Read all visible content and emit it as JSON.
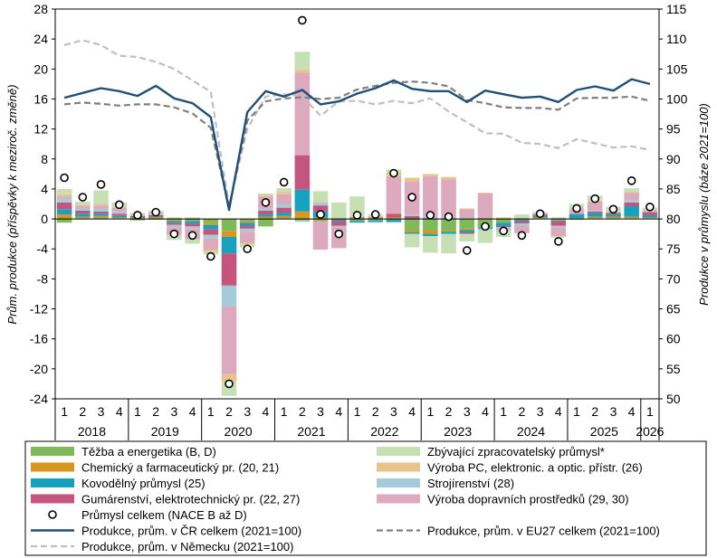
{
  "chart_data": {
    "type": "bar",
    "ylabel_left": "Prům. produkce (příspěvky  k meziroč. změně)",
    "ylabel_right": "Produkce v průmyslu (báze 2021=100)",
    "y_left": {
      "min": -24,
      "max": 28,
      "step": 4
    },
    "y_right": {
      "min": 50,
      "max": 115,
      "step": 5
    },
    "quarters": [
      "1",
      "2",
      "3",
      "4",
      "1",
      "2",
      "3",
      "4",
      "1",
      "2",
      "3",
      "4",
      "1",
      "2",
      "3",
      "4",
      "1",
      "2",
      "3",
      "4",
      "1",
      "2",
      "3",
      "4",
      "1",
      "2",
      "3",
      "4",
      "1",
      "2",
      "3",
      "4",
      "1"
    ],
    "years": [
      {
        "label": "2018",
        "start": 0,
        "count": 4
      },
      {
        "label": "2019",
        "start": 4,
        "count": 4
      },
      {
        "label": "2020",
        "start": 8,
        "count": 4
      },
      {
        "label": "2021",
        "start": 12,
        "count": 4
      },
      {
        "label": "2022",
        "start": 16,
        "count": 4
      },
      {
        "label": "2023",
        "start": 20,
        "count": 4
      },
      {
        "label": "2024",
        "start": 24,
        "count": 4
      },
      {
        "label": "2025",
        "start": 28,
        "count": 4
      },
      {
        "label": "2026",
        "start": 32,
        "count": 1
      }
    ],
    "stack_series": [
      {
        "name": "Těžba a energetika (B, D)",
        "color": "#7fba5a",
        "values": [
          -0.5,
          0.1,
          0.2,
          0.1,
          -0.2,
          -0.1,
          -0.3,
          -0.3,
          -0.5,
          -1.6,
          -0.3,
          -1.0,
          0.1,
          -0.2,
          -0.3,
          0.1,
          -0.3,
          -0.2,
          -0.1,
          -1.5,
          -1.5,
          -1.5,
          -1.3,
          -1.0,
          -0.5,
          -0.1,
          0.1,
          -0.2,
          0.1,
          0.1,
          0.1,
          0.1,
          0.1
        ]
      },
      {
        "name": "Chemický a farmaceutický pr. (20, 21)",
        "color": "#d7961e",
        "values": [
          0.6,
          0.2,
          0.2,
          0.1,
          0.1,
          0.2,
          0.1,
          0.1,
          -0.3,
          -0.8,
          -0.2,
          0.3,
          0.3,
          1.0,
          0.2,
          -0.1,
          0.1,
          0.1,
          0.2,
          -0.3,
          -0.5,
          -0.2,
          -0.2,
          -0.1,
          0.1,
          0.1,
          0.1,
          0.1,
          -0.1,
          0.2,
          0.2,
          0.2,
          0.1
        ]
      },
      {
        "name": "Kovodělný průmysl (25)",
        "color": "#16a2bf",
        "values": [
          0.7,
          0.4,
          0.3,
          0.2,
          0.1,
          0.1,
          -0.2,
          -0.3,
          -0.6,
          -2.2,
          -0.4,
          0.3,
          0.4,
          2.9,
          0.8,
          -0.2,
          -0.2,
          -0.2,
          -0.3,
          -0.2,
          -0.3,
          -0.3,
          -0.3,
          -0.2,
          -0.4,
          -0.2,
          0.2,
          -0.1,
          0.5,
          0.5,
          0.3,
          1.4,
          0.3
        ]
      },
      {
        "name": "Gumárenství, elektrotechnický pr. (22, 27)",
        "color": "#c4557c",
        "values": [
          0.9,
          0.4,
          0.3,
          0.3,
          0.2,
          0.2,
          -0.3,
          -0.4,
          -0.7,
          -4.3,
          -0.4,
          0.5,
          0.7,
          4.6,
          0.8,
          -0.6,
          0.1,
          0.1,
          0.5,
          0.4,
          0.1,
          0.1,
          -0.2,
          0.1,
          -0.2,
          -0.3,
          0.2,
          -0.6,
          0.1,
          0.2,
          0.2,
          0.5,
          0.4
        ]
      },
      {
        "name": "Strojírenství (28)",
        "color": "#a3ccd8",
        "values": [
          0.5,
          0.3,
          0.4,
          0.3,
          0.1,
          0.2,
          -0.3,
          -0.3,
          -0.5,
          -2.8,
          -0.4,
          0.3,
          0.5,
          -0.2,
          0.4,
          -0.2,
          0.1,
          -0.1,
          -0.1,
          0.2,
          0.2,
          0.2,
          0.1,
          -0.2,
          -0.5,
          -0.3,
          0.1,
          -0.2,
          0.1,
          0.1,
          0.1,
          0.3,
          0.1
        ]
      },
      {
        "name": "Výroba dopravních prostředků (29, 30)",
        "color": "#dca9bd",
        "values": [
          0.3,
          0.4,
          0.4,
          0.5,
          0.1,
          0.2,
          -1.0,
          -1.4,
          -1.5,
          -9.0,
          -1.5,
          1.6,
          1.3,
          11.0,
          -3.8,
          -2.8,
          0.0,
          0.0,
          5.0,
          4.4,
          5.4,
          5.0,
          1.2,
          3.3,
          0.0,
          -1.0,
          0.0,
          -1.2,
          0.5,
          1.2,
          0.0,
          1.0,
          0.2
        ]
      },
      {
        "name": "Výroba PC, elektronic. a optic. přístr. (26)",
        "color": "#e8c38a",
        "values": [
          0.3,
          0.1,
          0.2,
          0.1,
          0.1,
          0.1,
          0.1,
          0.1,
          -0.3,
          -1.0,
          -0.2,
          0.2,
          0.3,
          0.4,
          0.1,
          0.1,
          0.1,
          0.1,
          0.4,
          0.5,
          0.3,
          0.3,
          0.1,
          0.1,
          0.1,
          0.1,
          0.1,
          0.1,
          0.1,
          0.1,
          0.1,
          0.1,
          0.1
        ]
      },
      {
        "name": "Zbývající zpracovatelský průmysl*",
        "color": "#c6e0b4",
        "values": [
          0.7,
          0.4,
          1.8,
          0.6,
          0.1,
          0.1,
          -0.7,
          -0.6,
          -0.3,
          -1.9,
          -0.4,
          0.2,
          0.5,
          2.4,
          1.4,
          2.0,
          2.6,
          0.3,
          0.5,
          -1.8,
          -2.2,
          -2.6,
          -1.0,
          -1.7,
          -0.8,
          0.4,
          0.1,
          -0.2,
          0.6,
          0.7,
          0.6,
          0.5,
          0.2
        ]
      }
    ],
    "total_marker": {
      "name": "Průmysl celkem (NACE B až D)",
      "values": [
        5.5,
        2.9,
        4.6,
        1.9,
        0.5,
        0.9,
        -2.0,
        -2.2,
        -5.0,
        -22.0,
        -4.0,
        2.2,
        4.9,
        26.5,
        0.6,
        -2.0,
        0.5,
        0.6,
        6.1,
        2.9,
        0.5,
        0.3,
        -4.2,
        -1.0,
        -1.6,
        -2.2,
        0.7,
        -3.0,
        1.4,
        2.7,
        1.3,
        5.1,
        1.6
      ]
    },
    "lines": [
      {
        "name": "Produkce, prům. v ČR celkem (2021=100)",
        "color": "#1f4e79",
        "style": "solid",
        "values": [
          100.2,
          101.0,
          101.8,
          101.3,
          100.5,
          102.2,
          100.1,
          99.3,
          97.0,
          81.5,
          97.8,
          101.3,
          100.4,
          101.5,
          99.1,
          99.6,
          100.9,
          101.8,
          103.1,
          101.7,
          101.3,
          101.3,
          99.5,
          101.4,
          100.8,
          100.2,
          100.4,
          99.5,
          101.5,
          102.1,
          101.4,
          103.3,
          102.5
        ]
      },
      {
        "name": "Produkce, prům. v EU27 celkem (2021=100)",
        "color": "#7f7f7f",
        "style": "dashed",
        "values": [
          99.1,
          99.4,
          99.2,
          98.9,
          99.1,
          99.1,
          98.6,
          97.6,
          95.2,
          82.0,
          96.4,
          99.6,
          100.1,
          100.3,
          100.0,
          100.2,
          101.6,
          102.2,
          102.7,
          102.9,
          102.7,
          102.1,
          99.8,
          99.3,
          98.6,
          98.5,
          98.5,
          98.2,
          100.1,
          100.2,
          100.2,
          100.4,
          99.7
        ]
      },
      {
        "name": "Produkce, prům. v Německu (2021=100)",
        "color": "#bfbfbf",
        "style": "dashed",
        "values": [
          109.0,
          109.8,
          109.0,
          107.2,
          107.0,
          106.2,
          105.0,
          103.1,
          101.2,
          82.2,
          95.0,
          100.4,
          100.8,
          100.5,
          97.2,
          99.6,
          99.7,
          99.1,
          99.7,
          99.3,
          100.1,
          97.9,
          96.1,
          94.3,
          94.2,
          92.7,
          92.5,
          91.8,
          93.3,
          92.6,
          91.9,
          92.1,
          91.5
        ]
      }
    ]
  },
  "legend": [
    {
      "label": "Těžba a energetika (B, D)",
      "kind": "rect",
      "color": "#7fba5a"
    },
    {
      "label": "Zbývající zpracovatelský průmysl*",
      "kind": "rect",
      "color": "#c6e0b4"
    },
    {
      "label": "Chemický a farmaceutický pr. (20, 21)",
      "kind": "rect",
      "color": "#d7961e"
    },
    {
      "label": "Výroba PC, elektronic. a optic. přístr. (26)",
      "kind": "rect",
      "color": "#e8c38a"
    },
    {
      "label": "Kovodělný průmysl (25)",
      "kind": "rect",
      "color": "#16a2bf"
    },
    {
      "label": "Strojírenství (28)",
      "kind": "rect",
      "color": "#a3ccd8"
    },
    {
      "label": "Gumárenství, elektrotechnický pr. (22, 27)",
      "kind": "rect",
      "color": "#c4557c"
    },
    {
      "label": "Výroba dopravních prostředků (29, 30)",
      "kind": "rect",
      "color": "#dca9bd"
    },
    {
      "label": "Průmysl celkem (NACE B až D)",
      "kind": "marker",
      "color": "#000000"
    },
    {
      "label": "",
      "kind": "none",
      "color": ""
    },
    {
      "label": "Produkce, prům. v ČR celkem (2021=100)",
      "kind": "line-solid",
      "color": "#1f4e79"
    },
    {
      "label": "Produkce, prům. v EU27 celkem (2021=100)",
      "kind": "line-dashed",
      "color": "#7f7f7f"
    },
    {
      "label": "Produkce, prům. v Německu (2021=100)",
      "kind": "line-dashed",
      "color": "#bfbfbf"
    }
  ]
}
